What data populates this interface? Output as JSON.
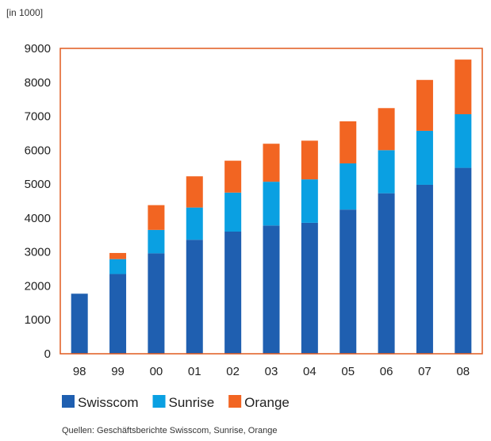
{
  "chart_data": {
    "type": "bar",
    "stacked": true,
    "unit_label": "[in 1000]",
    "categories": [
      "98",
      "99",
      "00",
      "01",
      "02",
      "03",
      "04",
      "05",
      "06",
      "07",
      "08"
    ],
    "series": [
      {
        "name": "Swisscom",
        "color": "#1f5fb0",
        "values": [
          1770,
          2350,
          2960,
          3360,
          3600,
          3780,
          3860,
          4250,
          4730,
          4980,
          5480
        ]
      },
      {
        "name": "Sunrise",
        "color": "#0aa0e2",
        "values": [
          0,
          440,
          690,
          950,
          1150,
          1290,
          1280,
          1360,
          1270,
          1590,
          1580
        ]
      },
      {
        "name": "Orange",
        "color": "#f26522",
        "values": [
          0,
          180,
          730,
          920,
          940,
          1120,
          1140,
          1240,
          1240,
          1500,
          1610
        ]
      }
    ],
    "yticks": [
      0,
      1000,
      2000,
      3000,
      4000,
      5000,
      6000,
      7000,
      8000,
      9000
    ],
    "ylim": [
      0,
      9000
    ],
    "grid": false,
    "legend_position": "bottom-left",
    "source": "Quellen: Geschäftsberichte Swisscom, Sunrise, Orange",
    "frame_color": "#e05a1e"
  }
}
